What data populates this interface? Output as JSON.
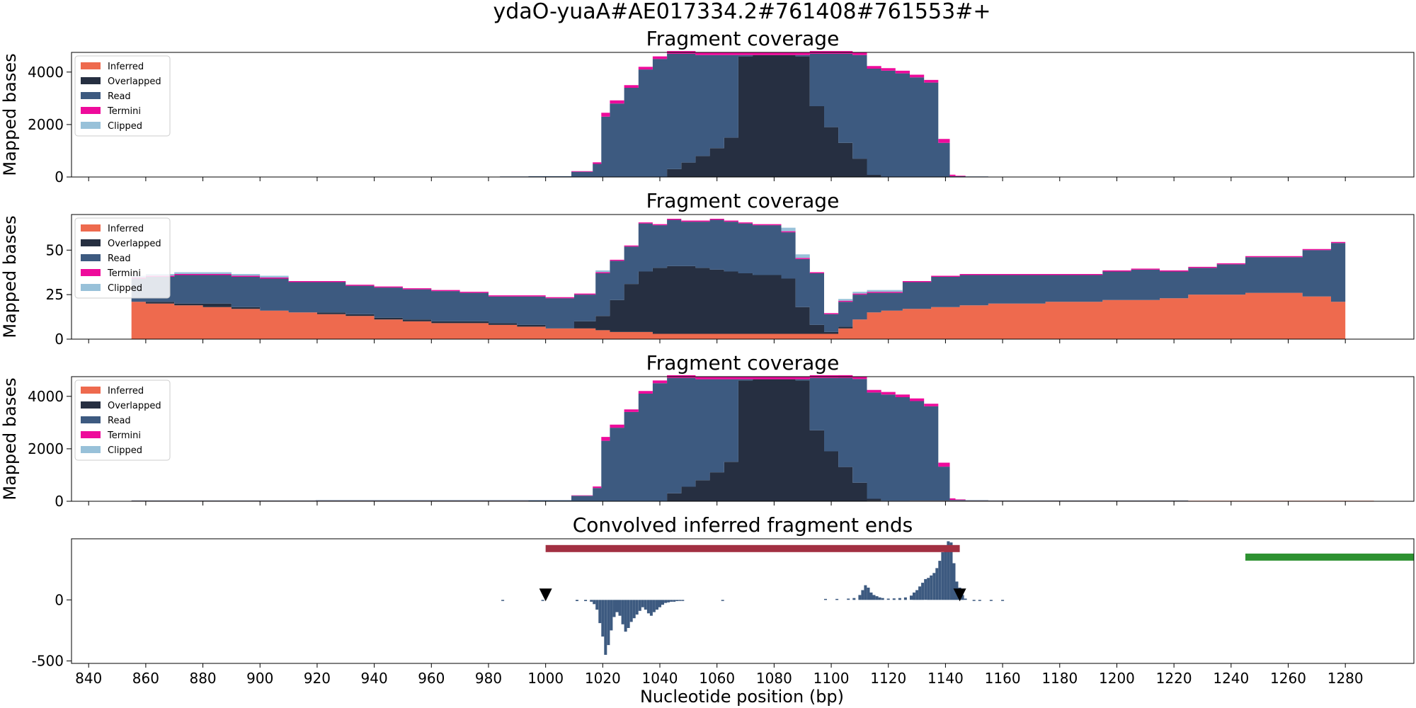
{
  "figure": {
    "suptitle": "ydaO-yuaA#AE017334.2#761408#761553#+"
  },
  "xaxis": {
    "label": "Nucleotide position (bp)",
    "ticks": [
      840,
      860,
      880,
      900,
      920,
      940,
      960,
      980,
      1000,
      1020,
      1040,
      1060,
      1080,
      1100,
      1120,
      1140,
      1160,
      1180,
      1200,
      1220,
      1240,
      1260,
      1280
    ],
    "range": [
      834,
      1304
    ]
  },
  "legend": {
    "placement": "upper-left",
    "entries": [
      {
        "label": "Inferred",
        "color": "#ee6a4e"
      },
      {
        "label": "Overlapped",
        "color": "#262f41"
      },
      {
        "label": "Read",
        "color": "#3d5a80"
      },
      {
        "label": "Termini",
        "color": "#ee0b9b"
      },
      {
        "label": "Clipped",
        "color": "#98c1d9"
      }
    ]
  },
  "chart_data": [
    {
      "type": "area",
      "stacked": true,
      "title": "Fragment coverage",
      "ylabel": "Mapped bases",
      "yticks": [
        0,
        2000,
        4000
      ],
      "ylim": [
        0,
        4750
      ],
      "x": [
        984,
        1004,
        1014,
        1019,
        1020,
        1025,
        1030,
        1035,
        1040,
        1045,
        1050,
        1055,
        1060,
        1065,
        1070,
        1075,
        1080,
        1085,
        1090,
        1095,
        1100,
        1105,
        1110,
        1115,
        1120,
        1125,
        1130,
        1135,
        1140,
        1143,
        1144,
        1150,
        1160
      ],
      "series": [
        {
          "name": "Inferred",
          "values": [
            0,
            0,
            0,
            0,
            0,
            0,
            0,
            0,
            0,
            0,
            0,
            0,
            0,
            0,
            0,
            0,
            0,
            0,
            0,
            0,
            0,
            0,
            0,
            0,
            0,
            0,
            0,
            0,
            0,
            0,
            0,
            0,
            0
          ]
        },
        {
          "name": "Overlapped",
          "values": [
            0,
            0,
            0,
            0,
            0,
            0,
            0,
            0,
            0,
            300,
            550,
            800,
            1100,
            1500,
            4600,
            4650,
            4650,
            4650,
            4600,
            2700,
            1900,
            1300,
            700,
            80,
            0,
            0,
            0,
            0,
            0,
            0,
            0,
            0,
            0
          ]
        },
        {
          "name": "Read",
          "values": [
            20,
            30,
            200,
            500,
            2300,
            2800,
            3400,
            4100,
            4500,
            4400,
            4150,
            3850,
            3550,
            3150,
            50,
            0,
            0,
            0,
            50,
            2000,
            2800,
            3400,
            3950,
            4050,
            4050,
            3950,
            3800,
            3600,
            1300,
            30,
            30,
            20,
            0
          ]
        },
        {
          "name": "Termini",
          "values": [
            0,
            0,
            20,
            60,
            150,
            120,
            100,
            100,
            100,
            100,
            100,
            100,
            100,
            100,
            100,
            100,
            100,
            100,
            100,
            100,
            100,
            100,
            100,
            100,
            100,
            100,
            100,
            100,
            150,
            60,
            20,
            0,
            0
          ]
        },
        {
          "name": "Clipped",
          "values": [
            0,
            0,
            0,
            0,
            0,
            0,
            0,
            0,
            0,
            0,
            0,
            0,
            0,
            0,
            0,
            0,
            0,
            0,
            0,
            0,
            0,
            0,
            0,
            0,
            0,
            0,
            0,
            0,
            0,
            0,
            0,
            0,
            0
          ]
        }
      ]
    },
    {
      "type": "area",
      "stacked": true,
      "title": "Fragment coverage",
      "ylabel": "Mapped bases",
      "yticks": [
        0,
        25,
        50
      ],
      "ylim": [
        0,
        70
      ],
      "x": [
        855,
        865,
        875,
        885,
        895,
        905,
        915,
        925,
        935,
        945,
        955,
        965,
        975,
        985,
        995,
        1005,
        1015,
        1020,
        1025,
        1030,
        1035,
        1040,
        1045,
        1050,
        1055,
        1060,
        1065,
        1070,
        1075,
        1080,
        1085,
        1090,
        1095,
        1100,
        1105,
        1110,
        1115,
        1120,
        1130,
        1140,
        1150,
        1160,
        1170,
        1180,
        1190,
        1200,
        1210,
        1220,
        1230,
        1240,
        1250,
        1260,
        1270,
        1280
      ],
      "series": [
        {
          "name": "Inferred",
          "values": [
            21,
            20,
            19,
            18,
            17,
            16,
            15,
            14,
            13,
            11,
            10,
            9,
            9,
            8,
            7,
            6,
            6,
            5,
            4,
            4,
            4,
            3,
            3,
            3,
            3,
            3,
            3,
            3,
            3,
            3,
            3,
            3,
            3,
            3,
            6,
            11,
            15,
            16,
            17,
            18,
            19,
            20,
            20,
            21,
            21,
            22,
            22,
            23,
            25,
            25,
            26,
            26,
            24,
            21
          ]
        },
        {
          "name": "Overlapped",
          "values": [
            0,
            1,
            1,
            2,
            1,
            0,
            0,
            1,
            1,
            1,
            1,
            1,
            1,
            1,
            1,
            0,
            4,
            8,
            18,
            27,
            34,
            37,
            38,
            38,
            37,
            36,
            35,
            34,
            33,
            33,
            31,
            15,
            5,
            1,
            1,
            0,
            0,
            0,
            0,
            0,
            0,
            0,
            0,
            0,
            0,
            0,
            0,
            0,
            0,
            0,
            0,
            0,
            0,
            0
          ]
        },
        {
          "name": "Read",
          "values": [
            13,
            14,
            16,
            16,
            17,
            18,
            17,
            17,
            16,
            17,
            17,
            17,
            16,
            15,
            16,
            17,
            15,
            24,
            22,
            21,
            27,
            24,
            26,
            25,
            26,
            28,
            28,
            28,
            28,
            28,
            26,
            27,
            29,
            10,
            14,
            14,
            11,
            10,
            15,
            17,
            17,
            16,
            16,
            15,
            15,
            16,
            17,
            15,
            15,
            17,
            20,
            20,
            26,
            33
          ]
        },
        {
          "name": "Termini",
          "values": [
            0.6,
            0.6,
            0.6,
            0.6,
            0.6,
            0.6,
            0.6,
            0.6,
            0.6,
            0.6,
            0.6,
            0.6,
            0.6,
            0.6,
            0.6,
            0.6,
            0.6,
            0.6,
            0.6,
            0.6,
            0.6,
            0.6,
            0.6,
            0.6,
            0.6,
            0.6,
            0.6,
            0.6,
            0.6,
            0.6,
            0.6,
            0.6,
            0.6,
            0.6,
            0.6,
            0.6,
            0.6,
            0.6,
            0.6,
            0.6,
            0.6,
            0.6,
            0.6,
            0.6,
            0.6,
            0.6,
            0.6,
            0.6,
            0.6,
            0.6,
            0.6,
            0.6,
            0.6,
            0.6
          ]
        },
        {
          "name": "Clipped",
          "values": [
            1,
            1,
            1,
            1,
            1,
            1,
            0,
            0,
            0,
            0,
            0,
            0,
            0,
            0,
            0,
            0,
            0,
            1,
            0,
            0,
            0,
            0,
            0,
            0,
            0,
            0,
            0,
            0,
            0,
            0,
            2,
            2,
            0,
            0,
            1,
            1,
            1,
            1,
            0,
            0,
            0,
            0,
            0,
            0,
            0,
            0,
            0,
            0,
            0,
            0,
            0,
            0,
            0,
            0
          ]
        }
      ]
    },
    {
      "type": "area",
      "stacked": true,
      "title": "Fragment coverage",
      "ylabel": "Mapped bases",
      "yticks": [
        0,
        2000,
        4000
      ],
      "ylim": [
        0,
        4750
      ],
      "x": [
        855,
        984,
        1004,
        1014,
        1019,
        1020,
        1025,
        1030,
        1035,
        1040,
        1045,
        1050,
        1055,
        1060,
        1065,
        1070,
        1075,
        1080,
        1085,
        1090,
        1095,
        1100,
        1105,
        1110,
        1115,
        1120,
        1125,
        1130,
        1135,
        1140,
        1143,
        1144,
        1150,
        1160,
        1290
      ],
      "series": [
        {
          "name": "Inferred",
          "values": [
            20,
            20,
            10,
            8,
            5,
            4,
            4,
            3,
            3,
            3,
            3,
            3,
            3,
            3,
            3,
            3,
            3,
            3,
            3,
            3,
            3,
            3,
            6,
            11,
            15,
            16,
            17,
            18,
            19,
            20,
            20,
            20,
            20,
            20,
            20
          ]
        },
        {
          "name": "Overlapped",
          "values": [
            0,
            0,
            0,
            0,
            0,
            0,
            0,
            0,
            0,
            0,
            300,
            550,
            800,
            1100,
            1500,
            4600,
            4650,
            4650,
            4650,
            4600,
            2700,
            1900,
            1300,
            700,
            80,
            0,
            0,
            0,
            0,
            0,
            0,
            0,
            0,
            0,
            0
          ]
        },
        {
          "name": "Read",
          "values": [
            15,
            20,
            30,
            200,
            500,
            2300,
            2800,
            3400,
            4100,
            4500,
            4400,
            4150,
            3850,
            3550,
            3150,
            50,
            0,
            0,
            0,
            50,
            2000,
            2800,
            3400,
            3950,
            4050,
            4050,
            3950,
            3800,
            3600,
            1300,
            30,
            30,
            20,
            15,
            0
          ]
        },
        {
          "name": "Termini",
          "values": [
            0,
            0,
            0,
            20,
            60,
            150,
            120,
            100,
            100,
            100,
            100,
            100,
            100,
            100,
            100,
            100,
            100,
            100,
            100,
            100,
            100,
            100,
            100,
            100,
            100,
            100,
            100,
            100,
            100,
            150,
            60,
            20,
            0,
            0,
            0
          ]
        },
        {
          "name": "Clipped",
          "values": [
            0,
            0,
            0,
            0,
            0,
            0,
            0,
            0,
            0,
            0,
            0,
            0,
            0,
            0,
            0,
            0,
            0,
            0,
            0,
            0,
            0,
            0,
            0,
            0,
            0,
            0,
            0,
            0,
            0,
            0,
            0,
            0,
            0,
            0,
            0
          ]
        }
      ]
    },
    {
      "type": "bar",
      "title": "Convolved inferred fragment ends",
      "yticks": [
        -500,
        0
      ],
      "ylim": [
        -520,
        500
      ],
      "x": [
        985,
        999,
        1011,
        1014,
        1016,
        1017,
        1018,
        1019,
        1020,
        1021,
        1022,
        1023,
        1024,
        1025,
        1026,
        1027,
        1028,
        1029,
        1030,
        1031,
        1032,
        1033,
        1034,
        1035,
        1036,
        1037,
        1038,
        1039,
        1040,
        1041,
        1042,
        1043,
        1044,
        1045,
        1046,
        1047,
        1048,
        1062,
        1098,
        1102,
        1106,
        1108,
        1110,
        1111,
        1112,
        1113,
        1114,
        1115,
        1116,
        1117,
        1118,
        1120,
        1122,
        1124,
        1126,
        1128,
        1129,
        1130,
        1131,
        1132,
        1133,
        1134,
        1135,
        1136,
        1137,
        1138,
        1139,
        1140,
        1141,
        1142,
        1143,
        1144,
        1145,
        1146,
        1147,
        1150,
        1152,
        1156,
        1160
      ],
      "values": [
        -8,
        -8,
        -10,
        -10,
        -15,
        -35,
        -80,
        -190,
        -300,
        -450,
        -370,
        -250,
        -140,
        -100,
        -130,
        -200,
        -260,
        -230,
        -180,
        -150,
        -120,
        -90,
        -60,
        -80,
        -110,
        -130,
        -100,
        -80,
        -60,
        -40,
        -25,
        -20,
        -15,
        -15,
        -10,
        -8,
        -5,
        -8,
        8,
        8,
        10,
        15,
        40,
        80,
        120,
        100,
        60,
        40,
        30,
        20,
        15,
        10,
        12,
        15,
        20,
        35,
        60,
        80,
        110,
        140,
        170,
        180,
        200,
        220,
        260,
        320,
        390,
        440,
        480,
        470,
        300,
        150,
        100,
        40,
        10,
        -8,
        -8,
        -8,
        -8
      ],
      "markers": [
        {
          "x": 1000,
          "shape": "triangle-down"
        },
        {
          "x": 1145,
          "shape": "triangle-down"
        }
      ],
      "segments": [
        {
          "x": [
            1000,
            1145
          ],
          "y": 420,
          "color": "#a23042"
        },
        {
          "x": [
            1245,
            1304
          ],
          "y": 350,
          "color": "#2e9231"
        }
      ]
    }
  ]
}
